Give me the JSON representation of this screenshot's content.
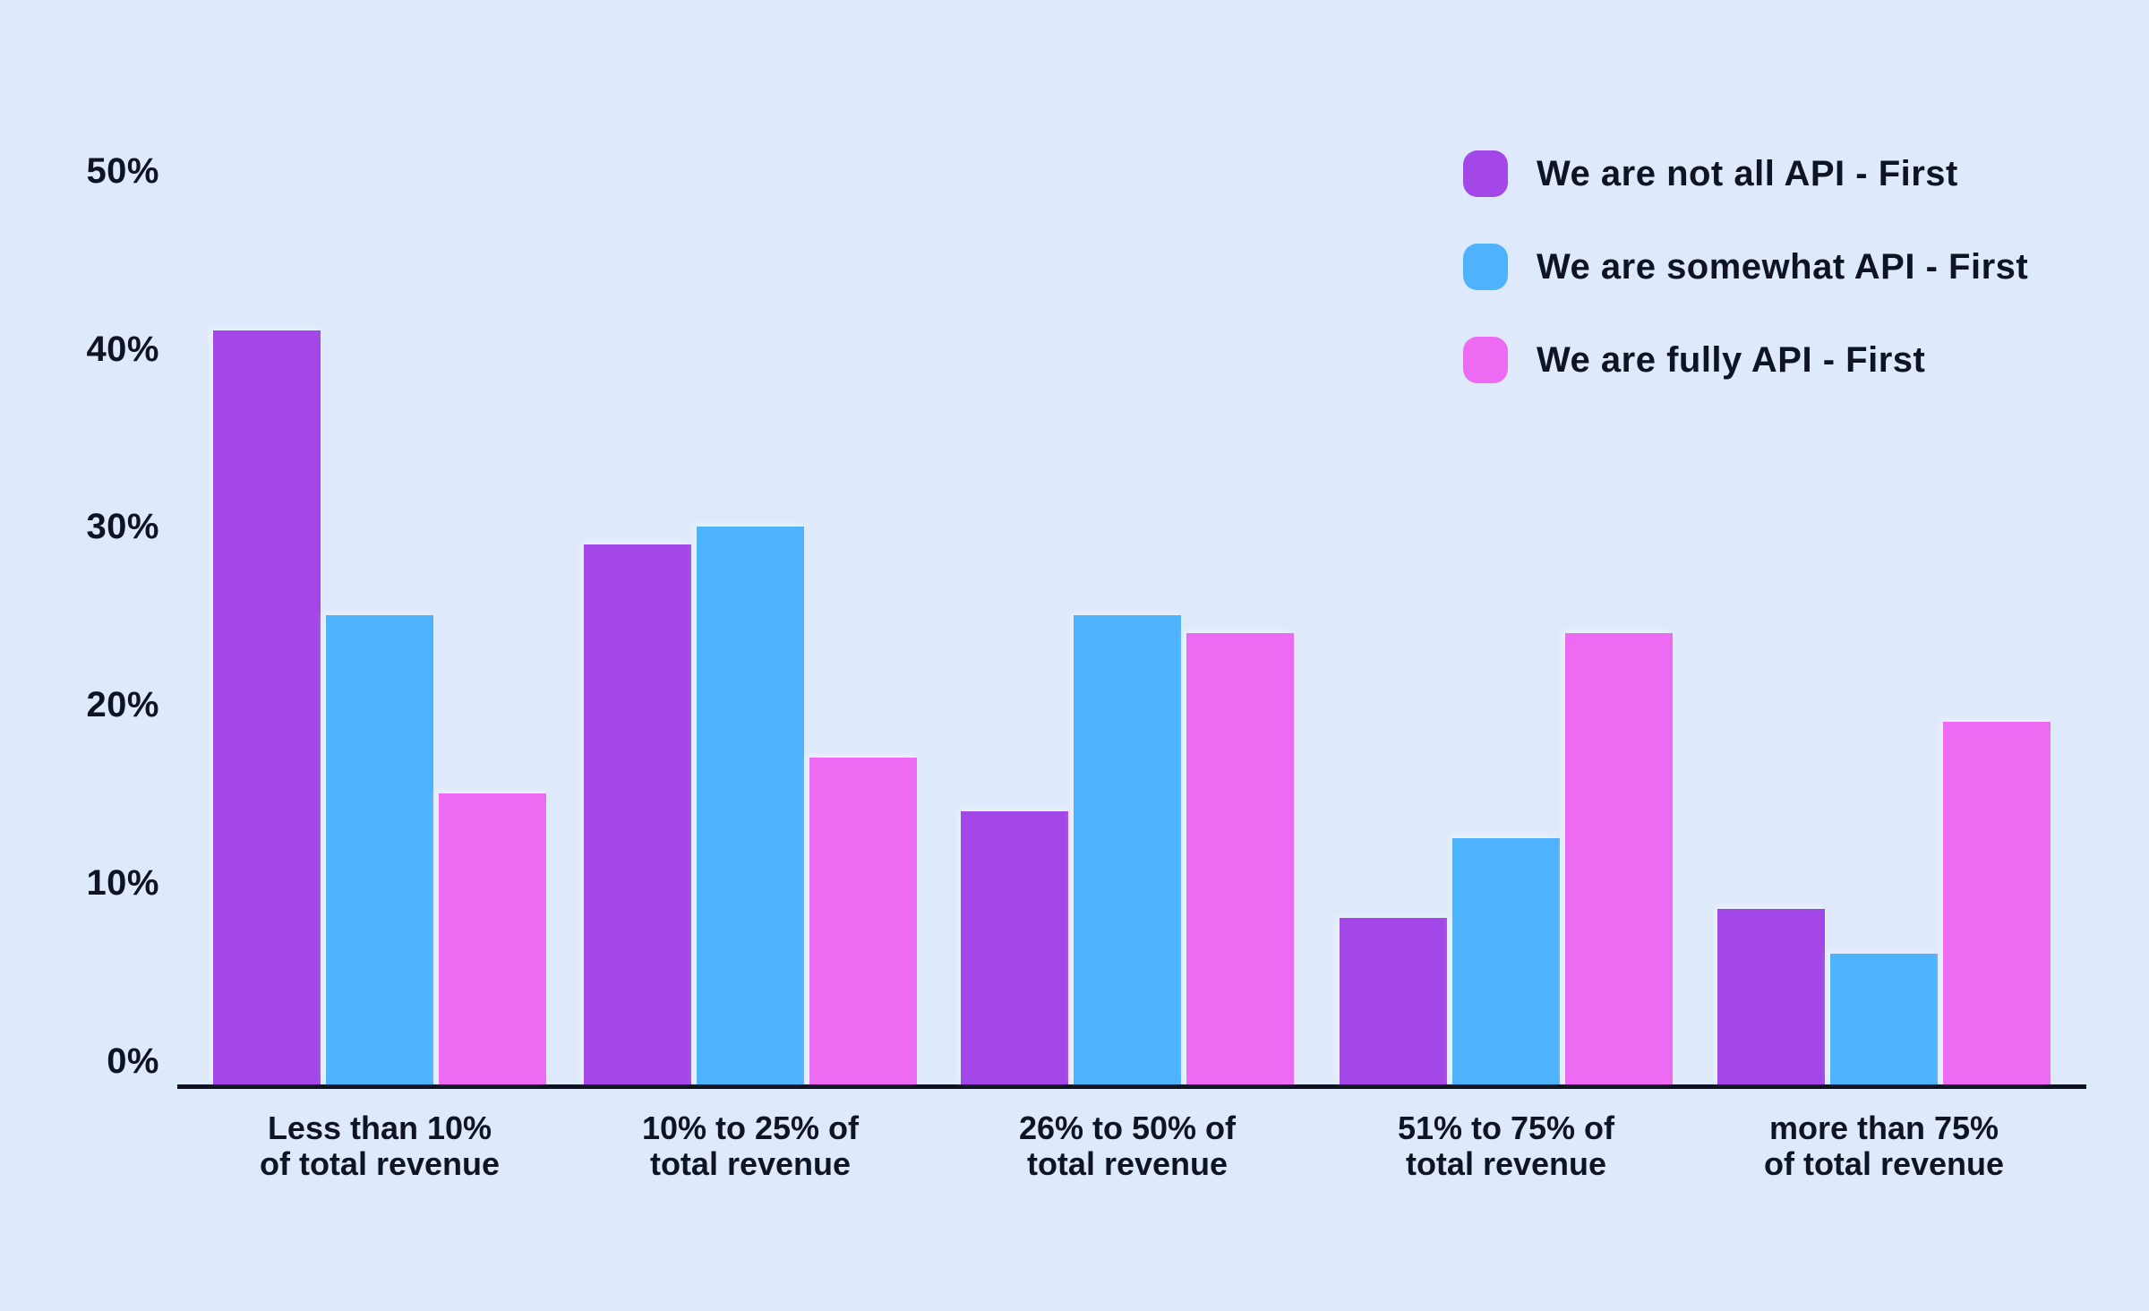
{
  "background_color": "#DEE9FC",
  "text_color": "#0E1424",
  "axis_color": "#0E1220",
  "chart_data": {
    "type": "bar",
    "title": "",
    "xlabel": "",
    "ylabel": "",
    "ylim": [
      0,
      50
    ],
    "grid": false,
    "legend_position": "top-right",
    "yticks": [
      "50%",
      "40%",
      "30%",
      "20%",
      "10%",
      "0%"
    ],
    "categories": [
      {
        "line1": "Less than 10%",
        "line2": "of total revenue"
      },
      {
        "line1": "10% to 25% of",
        "line2": "total revenue"
      },
      {
        "line1": "26% to 50% of",
        "line2": "total revenue"
      },
      {
        "line1": "51% to 75% of",
        "line2": "total revenue"
      },
      {
        "line1": "more than 75%",
        "line2": "of total revenue"
      }
    ],
    "series": [
      {
        "name": "We are not all API - First",
        "color": "#A347E8",
        "values": [
          41,
          29,
          14,
          8,
          8.5
        ]
      },
      {
        "name": "We are somewhat API - First",
        "color": "#4FB2FC",
        "values": [
          25,
          30,
          25,
          12.5,
          6
        ]
      },
      {
        "name": "We are fully API - First",
        "color": "#EC6BF2",
        "values": [
          15,
          17,
          24,
          24,
          19
        ]
      }
    ]
  }
}
